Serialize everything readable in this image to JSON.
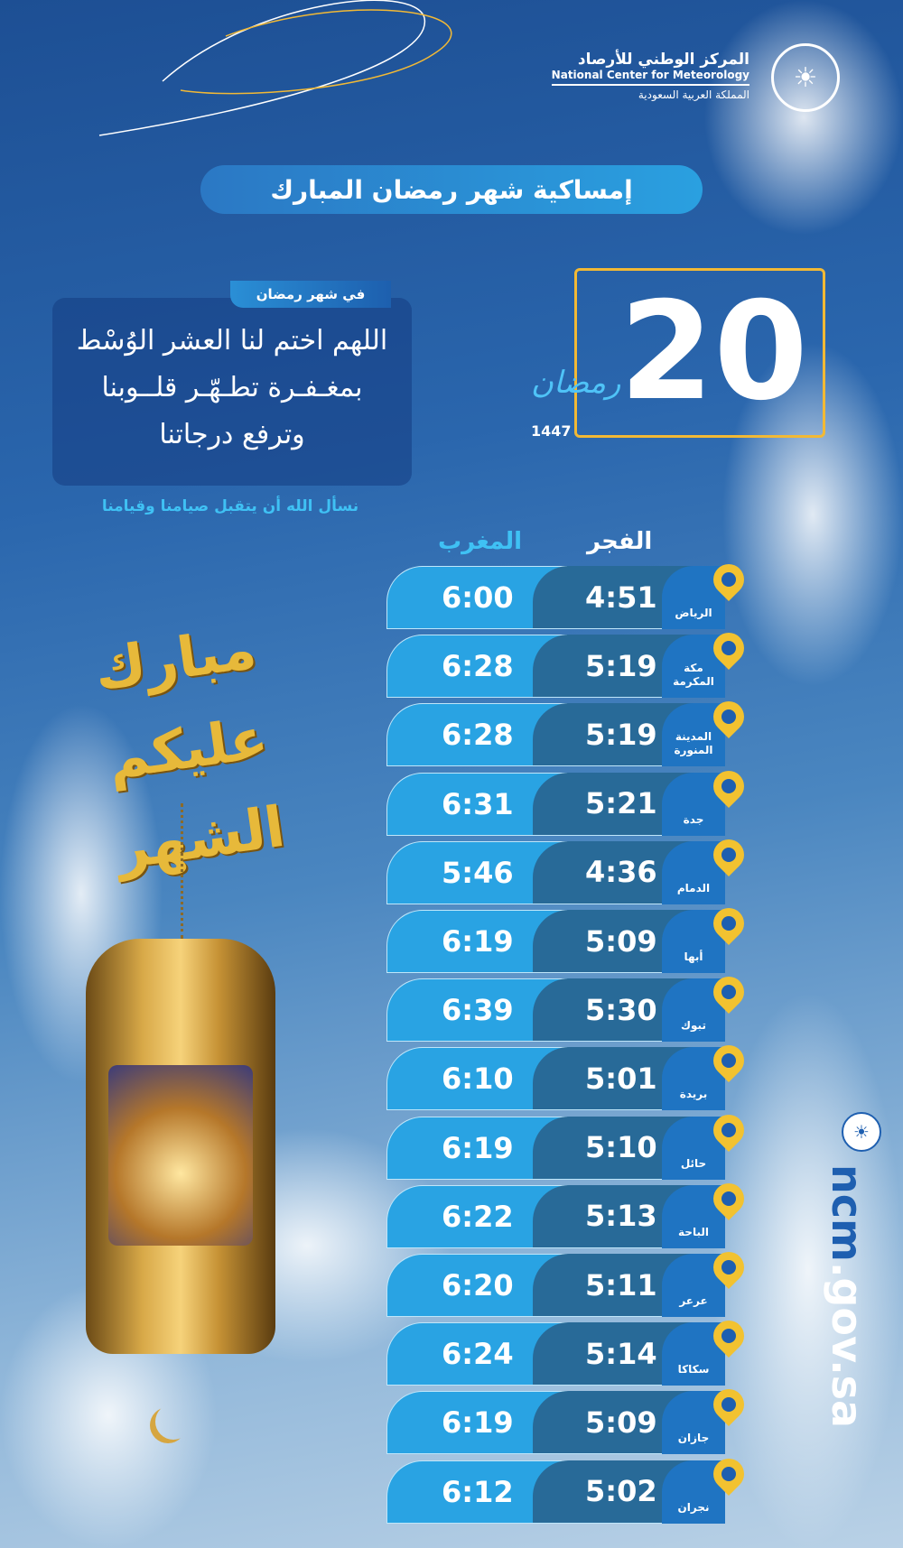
{
  "header": {
    "org_ar": "المركز الوطني للأرصاد",
    "org_en": "National Center for Meteorology",
    "country": "المملكة العربية السعودية",
    "logo_icon": "ncm-palm-logo"
  },
  "title": "إمساكية شهر رمضان المبارك",
  "day": {
    "number": "20",
    "month": "رمضان",
    "year": "1447"
  },
  "dua": {
    "tag": "في شهر رمضان",
    "lines": [
      "اللهم اختم لنا العشر الوُسْط",
      "بمغـفـرة تطـهّـر قلــوبنا",
      "وترفع درجاتنا"
    ],
    "footer": "نسأل الله أن يتقبل صيامنا وقيامنا"
  },
  "decor": {
    "calligraphy": "مبارك عليكم الشهر"
  },
  "columns": {
    "fajr": "الفجر",
    "maghrib": "المغرب"
  },
  "rows": [
    {
      "city": "الرياض",
      "fajr": "4:51",
      "maghrib": "6:00"
    },
    {
      "city": "مكة المكرمة",
      "fajr": "5:19",
      "maghrib": "6:28"
    },
    {
      "city": "المدينة المنورة",
      "fajr": "5:19",
      "maghrib": "6:28"
    },
    {
      "city": "جدة",
      "fajr": "5:21",
      "maghrib": "6:31"
    },
    {
      "city": "الدمام",
      "fajr": "4:36",
      "maghrib": "5:46"
    },
    {
      "city": "أبها",
      "fajr": "5:09",
      "maghrib": "6:19"
    },
    {
      "city": "تبوك",
      "fajr": "5:30",
      "maghrib": "6:39"
    },
    {
      "city": "بريدة",
      "fajr": "5:01",
      "maghrib": "6:10"
    },
    {
      "city": "حائل",
      "fajr": "5:10",
      "maghrib": "6:19"
    },
    {
      "city": "الباحة",
      "fajr": "5:13",
      "maghrib": "6:22"
    },
    {
      "city": "عرعر",
      "fajr": "5:11",
      "maghrib": "6:20"
    },
    {
      "city": "سكاكا",
      "fajr": "5:14",
      "maghrib": "6:24"
    },
    {
      "city": "جازان",
      "fajr": "5:09",
      "maghrib": "6:19"
    },
    {
      "city": "نجران",
      "fajr": "5:02",
      "maghrib": "6:12"
    }
  ],
  "website": {
    "brand": "ncm",
    "rest": ".gov.sa"
  },
  "colors": {
    "pin": "#f2c230",
    "fajr_cell": "#286a98",
    "maghrib_cell": "#29a3e3",
    "city_cell": "#1f74c2",
    "accent_gold": "#f2b935"
  }
}
